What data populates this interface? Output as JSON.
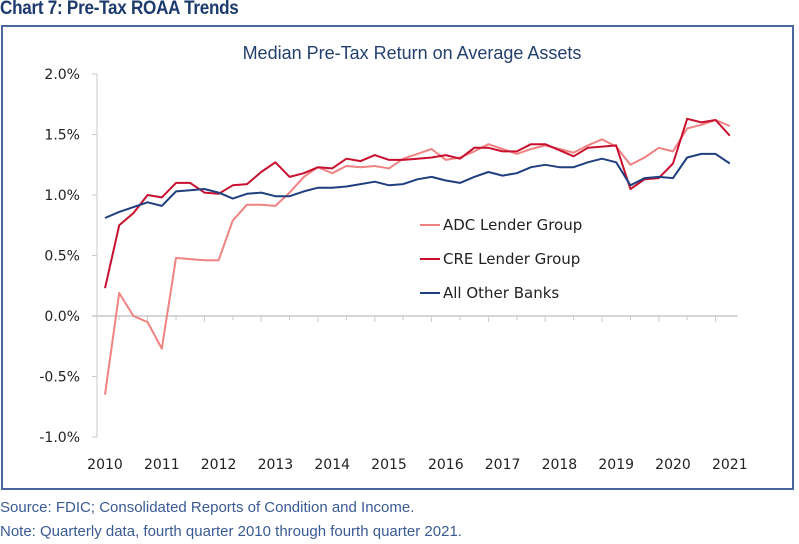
{
  "heading": "Chart 7: Pre-Tax ROAA Trends",
  "footnotes": {
    "source": "Source: FDIC; Consolidated Reports of Condition and Income.",
    "note": "Note: Quarterly data, fourth quarter 2010 through fourth quarter 2021."
  },
  "colors": {
    "adc": "#f08282",
    "cre": "#c8102e",
    "other": "#1f3f7f",
    "axis": "#c8c8c8",
    "title": "#23406f"
  },
  "chart_data": {
    "type": "line",
    "title": "Median Pre-Tax Return on Average Assets",
    "xlabel": "",
    "ylabel": "",
    "ylim": [
      -1.0,
      2.0
    ],
    "yticks": [
      2.0,
      1.5,
      1.0,
      0.5,
      0.0,
      -0.5,
      -1.0
    ],
    "ytick_labels": [
      "2.0%",
      "1.5%",
      "1.0%",
      "0.5%",
      "0.0%",
      "-0.5%",
      "-1.0%"
    ],
    "xtick_labels": [
      "2010",
      "2011",
      "2012",
      "2013",
      "2014",
      "2015",
      "2016",
      "2017",
      "2018",
      "2019",
      "2020",
      "2021"
    ],
    "x_description": "Quarterly, Q4 2010 through Q4 2021 (45 quarters)",
    "grid": false,
    "legend_position": "center-right",
    "series": [
      {
        "name": "ADC Lender Group",
        "color_key": "adc",
        "values": [
          -0.65,
          0.19,
          0.0,
          -0.05,
          -0.27,
          0.48,
          0.47,
          0.46,
          0.46,
          0.79,
          0.92,
          0.92,
          0.91,
          1.02,
          1.15,
          1.23,
          1.18,
          1.24,
          1.23,
          1.24,
          1.22,
          1.3,
          1.34,
          1.38,
          1.29,
          1.31,
          1.36,
          1.42,
          1.38,
          1.34,
          1.38,
          1.41,
          1.38,
          1.35,
          1.41,
          1.46,
          1.4,
          1.25,
          1.31,
          1.39,
          1.36,
          1.55,
          1.58,
          1.62,
          1.57
        ]
      },
      {
        "name": "CRE Lender Group",
        "color_key": "cre",
        "values": [
          0.23,
          0.75,
          0.85,
          1.0,
          0.98,
          1.1,
          1.1,
          1.02,
          1.01,
          1.08,
          1.09,
          1.19,
          1.27,
          1.15,
          1.18,
          1.23,
          1.22,
          1.3,
          1.28,
          1.33,
          1.29,
          1.29,
          1.3,
          1.31,
          1.33,
          1.3,
          1.39,
          1.39,
          1.36,
          1.36,
          1.42,
          1.42,
          1.37,
          1.32,
          1.39,
          1.4,
          1.41,
          1.05,
          1.13,
          1.14,
          1.26,
          1.63,
          1.6,
          1.62,
          1.49
        ]
      },
      {
        "name": "All Other Banks",
        "color_key": "other",
        "values": [
          0.81,
          0.86,
          0.9,
          0.94,
          0.91,
          1.03,
          1.04,
          1.05,
          1.02,
          0.97,
          1.01,
          1.02,
          0.99,
          0.99,
          1.03,
          1.06,
          1.06,
          1.07,
          1.09,
          1.11,
          1.08,
          1.09,
          1.13,
          1.15,
          1.12,
          1.1,
          1.15,
          1.19,
          1.16,
          1.18,
          1.23,
          1.25,
          1.23,
          1.23,
          1.27,
          1.3,
          1.27,
          1.08,
          1.14,
          1.15,
          1.14,
          1.31,
          1.34,
          1.34,
          1.26
        ]
      }
    ]
  }
}
